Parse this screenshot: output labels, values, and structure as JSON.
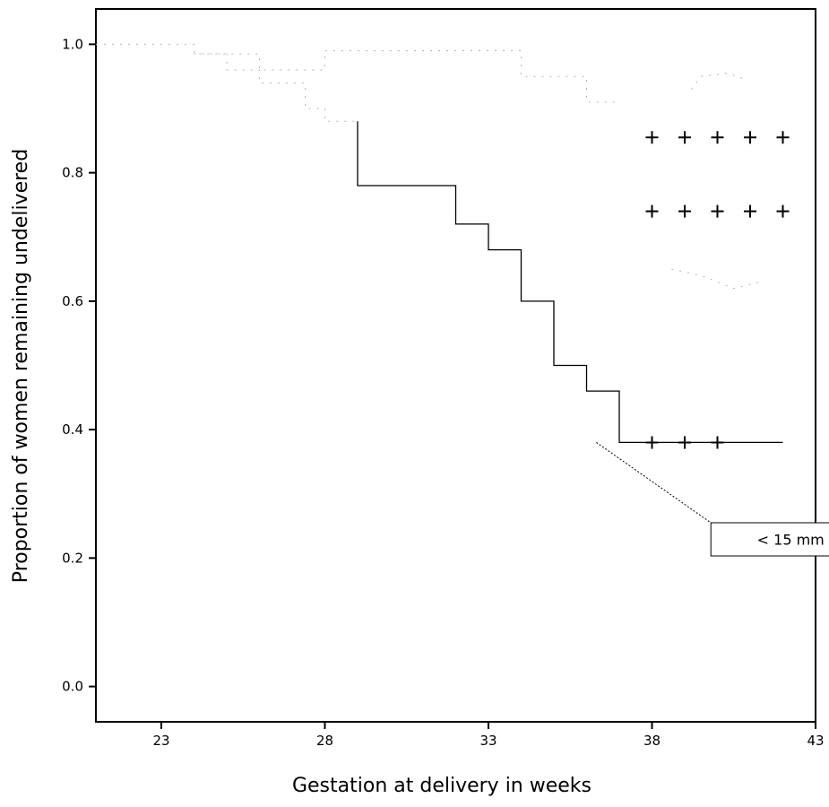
{
  "chart_data": {
    "type": "line",
    "subtype": "kaplan-meier",
    "title": "",
    "xlabel": "Gestation at delivery in weeks",
    "ylabel": "Proportion of women remaining undelivered",
    "xlim": [
      21,
      43
    ],
    "ylim": [
      -0.055,
      1.055
    ],
    "x_ticks": [
      23,
      28,
      33,
      38,
      43
    ],
    "x_tick_labels": [
      "23",
      "28",
      "33",
      "38",
      "43"
    ],
    "y_ticks": [
      0.0,
      0.2,
      0.4,
      0.6,
      0.8,
      1.0
    ],
    "y_tick_labels": [
      "0.0",
      "0.2",
      "0.4",
      "0.6",
      "0.8",
      "1.0"
    ],
    "grid": false,
    "legend": "none",
    "line_color": "#000000",
    "series": [
      {
        "style": "faint",
        "points": [
          [
            21,
            1.0
          ],
          [
            24,
            1.0
          ],
          [
            24,
            0.985
          ],
          [
            26,
            0.985
          ],
          [
            26,
            0.96
          ],
          [
            27,
            0.96
          ],
          [
            27,
            0.96
          ],
          [
            28,
            0.96
          ],
          [
            28,
            0.99
          ],
          [
            29,
            0.99
          ],
          [
            29,
            0.99
          ],
          [
            34,
            0.99
          ],
          [
            34,
            0.95
          ],
          [
            36,
            0.95
          ],
          [
            36,
            0.91
          ],
          [
            37,
            0.91
          ]
        ],
        "censored": []
      },
      {
        "style": "faint",
        "points": [
          [
            24,
            0.985
          ],
          [
            25,
            0.985
          ],
          [
            25,
            0.96
          ],
          [
            26,
            0.96
          ],
          [
            26,
            0.94
          ],
          [
            27.4,
            0.94
          ],
          [
            27.4,
            0.9
          ],
          [
            28,
            0.9
          ],
          [
            28,
            0.88
          ],
          [
            29,
            0.88
          ]
        ],
        "censored": []
      },
      {
        "style": "faint",
        "points": [
          [
            39.2,
            0.93
          ],
          [
            39.5,
            0.95
          ],
          [
            40.3,
            0.955
          ],
          [
            40.9,
            0.945
          ]
        ],
        "censored": []
      },
      {
        "style": "faint",
        "points": [
          [
            38.6,
            0.65
          ],
          [
            39.5,
            0.64
          ],
          [
            40.5,
            0.62
          ],
          [
            41.3,
            0.63
          ]
        ],
        "censored": []
      },
      {
        "name": "",
        "style": "solid",
        "points": [
          [
            29,
            0.88
          ],
          [
            29,
            0.78
          ],
          [
            32,
            0.78
          ],
          [
            32,
            0.72
          ],
          [
            33,
            0.72
          ],
          [
            33,
            0.68
          ],
          [
            34,
            0.68
          ],
          [
            34,
            0.6
          ],
          [
            35,
            0.6
          ],
          [
            35,
            0.5
          ],
          [
            36,
            0.5
          ],
          [
            36,
            0.46
          ],
          [
            37,
            0.46
          ],
          [
            37,
            0.38
          ],
          [
            42,
            0.38
          ]
        ],
        "censored": [
          38,
          39,
          40
        ]
      },
      {
        "style": "censor-row",
        "points": [],
        "censored": [
          38,
          39,
          40,
          41,
          42
        ],
        "level": 0.855
      },
      {
        "style": "censor-row",
        "points": [],
        "censored": [
          38,
          39,
          40,
          41,
          42
        ],
        "level": 0.74
      }
    ],
    "annotations": [
      {
        "text": "< 15 mm",
        "target_x": 36.3,
        "target_y": 0.38,
        "box_x": [
          39.8,
          46.5
        ],
        "box_y": [
          0.205,
          0.255
        ]
      }
    ]
  }
}
